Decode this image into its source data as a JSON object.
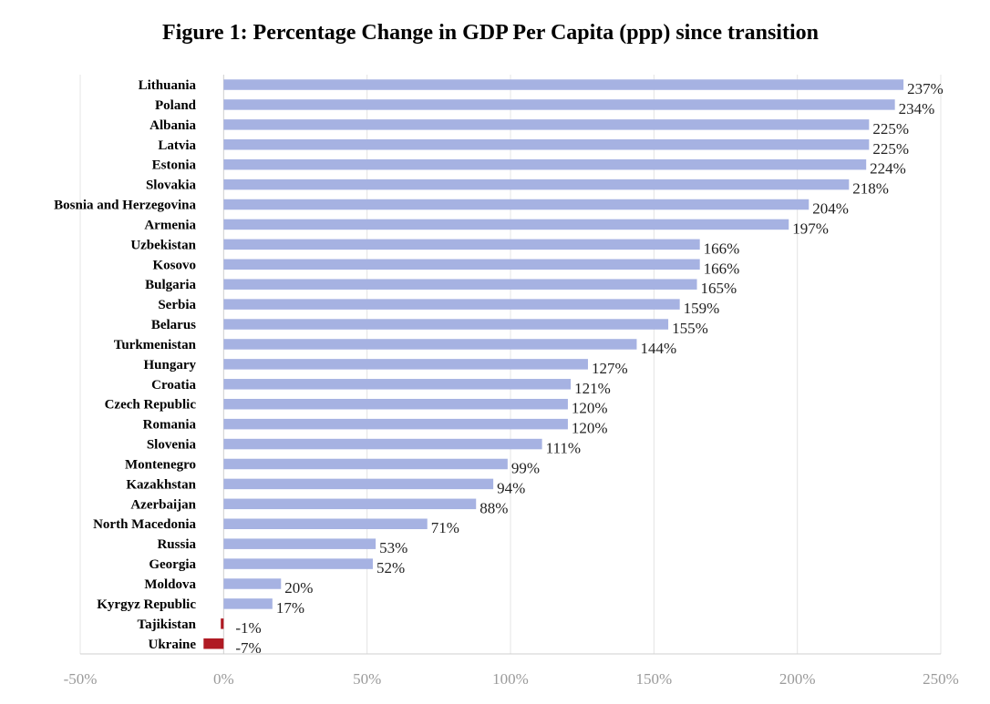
{
  "chart_data": {
    "type": "bar",
    "orientation": "horizontal",
    "title": "Figure 1: Percentage Change in GDP Per Capita (ppp) since transition",
    "xlabel": "",
    "ylabel": "",
    "xlim": [
      -50,
      250
    ],
    "grid": true,
    "legend": "none",
    "categories": [
      "Lithuania",
      "Poland",
      "Albania",
      "Latvia",
      "Estonia",
      "Slovakia",
      "Bosnia and Herzegovina",
      "Armenia",
      "Uzbekistan",
      "Kosovo",
      "Bulgaria",
      "Serbia",
      "Belarus",
      "Turkmenistan",
      "Hungary",
      "Croatia",
      "Czech Republic",
      "Romania",
      "Slovenia",
      "Montenegro",
      "Kazakhstan",
      "Azerbaijan",
      "North Macedonia",
      "Russia",
      "Georgia",
      "Moldova",
      "Kyrgyz Republic",
      "Tajikistan",
      "Ukraine"
    ],
    "values": [
      237,
      234,
      225,
      225,
      224,
      218,
      204,
      197,
      166,
      166,
      165,
      159,
      155,
      144,
      127,
      121,
      120,
      120,
      111,
      99,
      94,
      88,
      71,
      53,
      52,
      20,
      17,
      -1,
      -7
    ],
    "value_labels": [
      "237%",
      "234%",
      "225%",
      "225%",
      "224%",
      "218%",
      "204%",
      "197%",
      "166%",
      "166%",
      "165%",
      "159%",
      "155%",
      "144%",
      "127%",
      "121%",
      "120%",
      "120%",
      "111%",
      "99%",
      "94%",
      "88%",
      "71%",
      "53%",
      "52%",
      "20%",
      "17%",
      "-1%",
      "-7%"
    ],
    "x_ticks": [
      -50,
      0,
      50,
      100,
      150,
      200,
      250
    ],
    "x_tick_labels": [
      "-50%",
      "0%",
      "50%",
      "100%",
      "150%",
      "200%",
      "250%"
    ],
    "colors": {
      "positive": "#a6b2e2",
      "negative": "#b01a23",
      "grid": "#e4e4e4",
      "axis": "#cfcfcf"
    }
  }
}
